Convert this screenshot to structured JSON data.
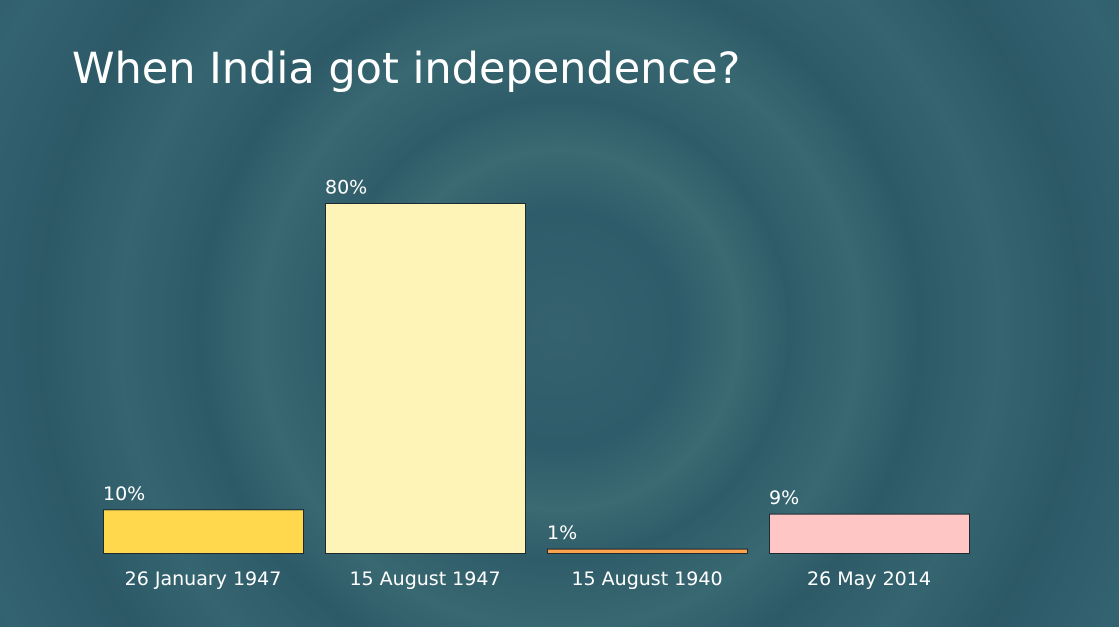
{
  "slide": {
    "title": "When India got independence?"
  },
  "chart_data": {
    "type": "bar",
    "title": "When India got independence?",
    "categories": [
      "26 January 1947",
      "15 August 1947",
      "15 August 1940",
      "26 May 2014"
    ],
    "values": [
      10,
      80,
      1,
      9
    ],
    "value_labels": [
      "10%",
      "80%",
      "1%",
      "9%"
    ],
    "colors": [
      "#ffd84d",
      "#fff4b8",
      "#ffa24d",
      "#ffc6c6"
    ],
    "ylim": [
      0,
      80
    ],
    "grid": false,
    "legend": "none",
    "xlabel": "",
    "ylabel": ""
  }
}
